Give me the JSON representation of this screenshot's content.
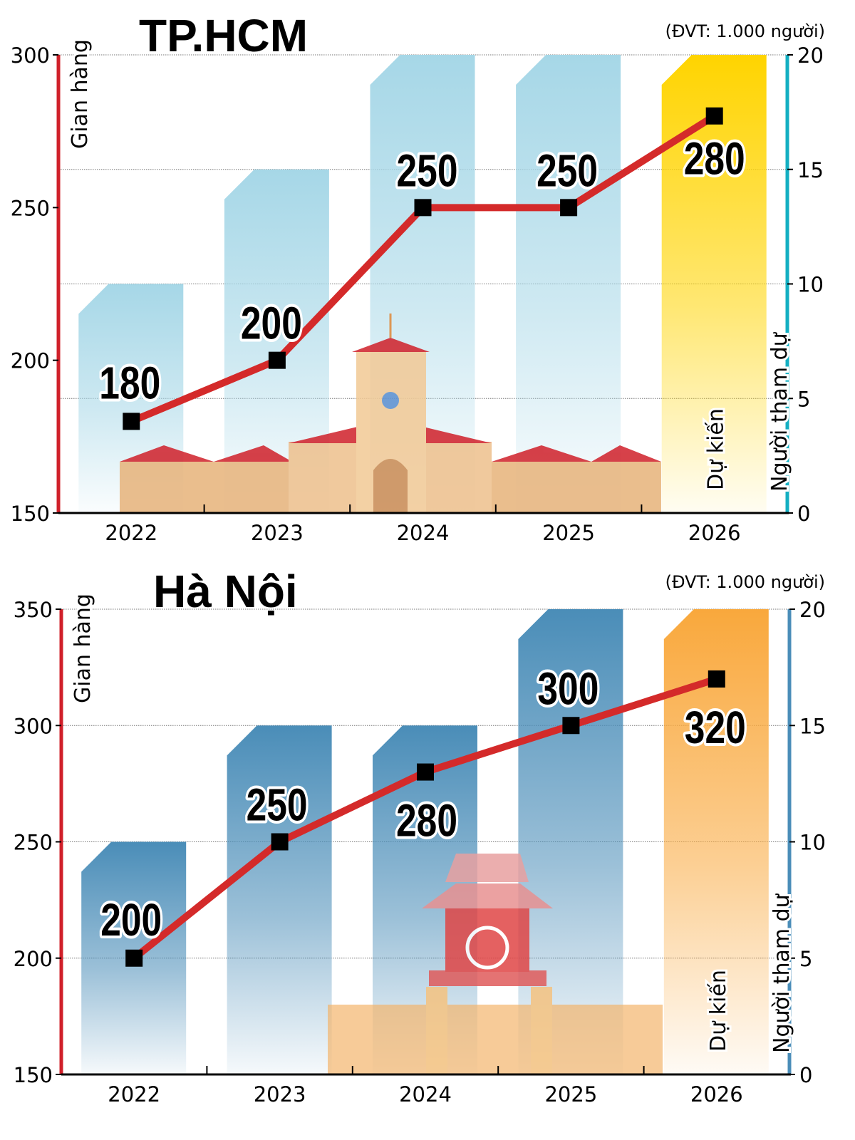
{
  "chart_data": [
    {
      "type": "bar+line",
      "title": "TP.HCM",
      "unit_note": "(ĐVT: 1.000 người)",
      "categories": [
        "2022",
        "2023",
        "2024",
        "2025",
        "2026"
      ],
      "left_axis": {
        "label": "Gian hàng",
        "range": [
          150,
          300
        ],
        "ticks": [
          150,
          200,
          250,
          300
        ],
        "color": "#d0202a"
      },
      "right_axis": {
        "label": "Người tham dự",
        "range": [
          0,
          20
        ],
        "ticks": [
          0,
          5,
          10,
          15,
          20
        ],
        "color": "#14afc2"
      },
      "bars": {
        "axis": "right",
        "values": [
          10,
          15,
          20,
          20,
          20
        ],
        "color": "#a6d7e7",
        "projected_color": "#ffd400"
      },
      "line": {
        "axis": "left",
        "values": [
          180,
          200,
          250,
          250,
          280
        ],
        "data_labels": [
          "180",
          "200",
          "250",
          "250",
          "280"
        ],
        "color": "#d42a2a",
        "marker": "square"
      },
      "projected_label": "Dự kiến",
      "grid": true
    },
    {
      "type": "bar+line",
      "title": "Hà Nội",
      "unit_note": "(ĐVT: 1.000 người)",
      "categories": [
        "2022",
        "2023",
        "2024",
        "2025",
        "2026"
      ],
      "left_axis": {
        "label": "Gian hàng",
        "range": [
          150,
          350
        ],
        "ticks": [
          150,
          200,
          250,
          300,
          350
        ],
        "color": "#d0202a"
      },
      "right_axis": {
        "label": "Người tham dự",
        "range": [
          0,
          20
        ],
        "ticks": [
          0,
          5,
          10,
          15,
          20
        ],
        "color": "#4a8db8"
      },
      "bars": {
        "axis": "right",
        "values": [
          10,
          15,
          15,
          20,
          20
        ],
        "color": "#4a8db8",
        "projected_color": "#f9a83c"
      },
      "line": {
        "axis": "left",
        "values": [
          200,
          250,
          280,
          300,
          320
        ],
        "data_labels": [
          "200",
          "250",
          "280",
          "300",
          "320"
        ],
        "color": "#d42a2a",
        "marker": "square"
      },
      "projected_label": "Dự kiến",
      "grid": true
    }
  ]
}
